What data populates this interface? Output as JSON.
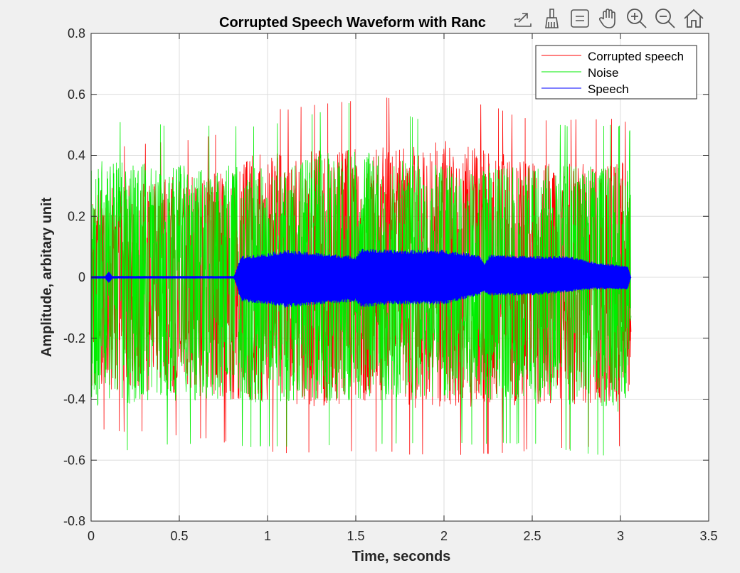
{
  "toolbar": {
    "icons": [
      "export-icon",
      "brush-icon",
      "datatip-icon",
      "pan-icon",
      "zoom-in-icon",
      "zoom-out-icon",
      "home-icon"
    ]
  },
  "chart_data": {
    "type": "line",
    "title": "Corrupted Speech Waveform with Ranc",
    "xlabel": "Time, seconds",
    "ylabel": "Amplitude, arbitary unit",
    "xlim": [
      0,
      3.5
    ],
    "ylim": [
      -0.8,
      0.8
    ],
    "xticks": [
      0,
      0.5,
      1,
      1.5,
      2,
      2.5,
      3,
      3.5
    ],
    "xtick_labels": [
      "0",
      "0.5",
      "1",
      "1.5",
      "2",
      "2.5",
      "3",
      "3.5"
    ],
    "yticks": [
      -0.8,
      -0.6,
      -0.4,
      -0.2,
      0,
      0.2,
      0.4,
      0.6,
      0.8
    ],
    "ytick_labels": [
      "-0.8",
      "-0.6",
      "-0.4",
      "-0.2",
      "0",
      "0.2",
      "0.4",
      "0.6",
      "0.8"
    ],
    "grid": true,
    "legend": "top-right",
    "signal_end_seconds": 3.06,
    "series": [
      {
        "name": "Corrupted speech",
        "color": "#ff0000",
        "envelope": {
          "x": [
            0,
            0.5,
            0.82,
            0.85,
            1.0,
            1.5,
            2.0,
            2.5,
            3.0,
            3.06
          ],
          "max": [
            0.42,
            0.45,
            0.48,
            0.55,
            0.55,
            0.58,
            0.61,
            0.52,
            0.52,
            0.5
          ],
          "min": [
            -0.5,
            -0.52,
            -0.55,
            -0.58,
            -0.58,
            -0.57,
            -0.59,
            -0.57,
            -0.56,
            -0.5
          ]
        }
      },
      {
        "name": "Noise",
        "color": "#00ee00",
        "envelope": {
          "x": [
            0,
            0.5,
            1.0,
            1.5,
            2.0,
            2.5,
            3.0,
            3.06
          ],
          "max": [
            0.52,
            0.5,
            0.5,
            0.58,
            0.5,
            0.5,
            0.5,
            0.48
          ],
          "min": [
            -0.58,
            -0.55,
            -0.56,
            -0.55,
            -0.55,
            -0.55,
            -0.6,
            -0.52
          ]
        }
      },
      {
        "name": "Speech",
        "color": "#0000ff",
        "envelope": {
          "x": [
            0,
            0.08,
            0.1,
            0.12,
            0.81,
            0.82,
            0.85,
            1.0,
            1.1,
            1.5,
            1.53,
            1.7,
            2.0,
            2.2,
            2.23,
            2.26,
            2.5,
            2.7,
            2.85,
            3.0,
            3.04,
            3.06
          ],
          "max": [
            0.004,
            0.004,
            0.02,
            0.004,
            0.004,
            0.02,
            0.07,
            0.08,
            0.09,
            0.07,
            0.095,
            0.09,
            0.09,
            0.075,
            0.045,
            0.075,
            0.07,
            0.07,
            0.05,
            0.04,
            0.04,
            0.0
          ],
          "min": [
            -0.004,
            -0.004,
            -0.02,
            -0.004,
            -0.004,
            -0.02,
            -0.08,
            -0.09,
            -0.1,
            -0.08,
            -0.1,
            -0.09,
            -0.09,
            -0.06,
            -0.05,
            -0.06,
            -0.06,
            -0.05,
            -0.04,
            -0.04,
            -0.04,
            0.0
          ]
        }
      }
    ]
  }
}
